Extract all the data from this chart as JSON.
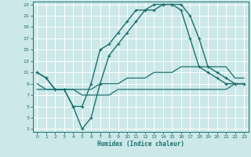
{
  "xlabel": "Humidex (Indice chaleur)",
  "xlim": [
    -0.5,
    23.5
  ],
  "ylim": [
    0.5,
    23.5
  ],
  "xticks": [
    0,
    1,
    2,
    3,
    4,
    5,
    6,
    7,
    8,
    9,
    10,
    11,
    12,
    13,
    14,
    15,
    16,
    17,
    18,
    19,
    20,
    21,
    22,
    23
  ],
  "yticks": [
    1,
    3,
    5,
    7,
    9,
    11,
    13,
    15,
    17,
    19,
    21,
    23
  ],
  "bg_color": "#cce8e8",
  "grid_color": "#ffffff",
  "line_color": "#1a7070",
  "line1_x": [
    0,
    1,
    2,
    3,
    4,
    5,
    6,
    7,
    8,
    9,
    10,
    11,
    12,
    13,
    14,
    15,
    16,
    17,
    18,
    19,
    20,
    21,
    22,
    23
  ],
  "line1_y": [
    11,
    10,
    8,
    8,
    5,
    5,
    9,
    15,
    16,
    18,
    20,
    22,
    22,
    23,
    23,
    23,
    22,
    17,
    12,
    11,
    10,
    9,
    9,
    9
  ],
  "line2_x": [
    0,
    1,
    2,
    3,
    4,
    5,
    6,
    7,
    8,
    9,
    10,
    11,
    12,
    13,
    14,
    15,
    16,
    17,
    18,
    19,
    20,
    21,
    22,
    23
  ],
  "line2_y": [
    11,
    10,
    8,
    8,
    5,
    1,
    3,
    9,
    14,
    16,
    18,
    20,
    22,
    22,
    23,
    23,
    23,
    21,
    17,
    12,
    11,
    10,
    9,
    9
  ],
  "line3_x": [
    0,
    1,
    2,
    3,
    4,
    5,
    6,
    7,
    8,
    9,
    10,
    11,
    12,
    13,
    14,
    15,
    16,
    17,
    18,
    19,
    20,
    21,
    22,
    23
  ],
  "line3_y": [
    9,
    8,
    8,
    8,
    8,
    8,
    8,
    9,
    9,
    9,
    10,
    10,
    10,
    11,
    11,
    11,
    12,
    12,
    12,
    12,
    12,
    12,
    10,
    10
  ],
  "line4_x": [
    0,
    1,
    2,
    3,
    4,
    5,
    6,
    7,
    8,
    9,
    10,
    11,
    12,
    13,
    14,
    15,
    16,
    17,
    18,
    19,
    20,
    21,
    22,
    23
  ],
  "line4_y": [
    8,
    8,
    8,
    8,
    8,
    7,
    7,
    7,
    7,
    8,
    8,
    8,
    8,
    8,
    8,
    8,
    8,
    8,
    8,
    8,
    8,
    8,
    9,
    9
  ]
}
